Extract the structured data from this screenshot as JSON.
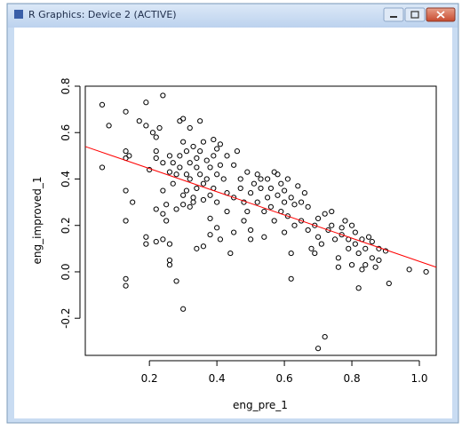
{
  "window": {
    "title": "R Graphics: Device 2 (ACTIVE)"
  },
  "chart_data": {
    "type": "scatter",
    "xlabel": "eng_pre_1",
    "ylabel": "eng_improved_1",
    "color": "#000000",
    "xlim": [
      0.01,
      1.05
    ],
    "ylim": [
      -0.36,
      0.8
    ],
    "xticks": [
      0.2,
      0.4,
      0.6,
      0.8,
      {
        "value": 1.0,
        "label": "1.0"
      }
    ],
    "yticks": [
      {
        "value": -0.2,
        "label": "-0.2"
      },
      {
        "value": 0.0,
        "label": "0.0"
      },
      0.2,
      0.4,
      0.6,
      0.8
    ],
    "regression_line": {
      "x": [
        0.01,
        1.05
      ],
      "y": [
        0.54,
        0.02
      ],
      "color": "#ff0000"
    },
    "x": [
      0.06,
      0.06,
      0.08,
      0.13,
      0.13,
      0.13,
      0.14,
      0.13,
      0.13,
      0.13,
      0.13,
      0.15,
      0.17,
      0.19,
      0.19,
      0.19,
      0.19,
      0.2,
      0.21,
      0.22,
      0.22,
      0.22,
      0.22,
      0.22,
      0.23,
      0.24,
      0.24,
      0.24,
      0.24,
      0.24,
      0.25,
      0.25,
      0.26,
      0.26,
      0.26,
      0.26,
      0.26,
      0.27,
      0.27,
      0.28,
      0.28,
      0.28,
      0.29,
      0.29,
      0.29,
      0.3,
      0.3,
      0.3,
      0.3,
      0.3,
      0.31,
      0.31,
      0.31,
      0.32,
      0.32,
      0.32,
      0.32,
      0.33,
      0.33,
      0.33,
      0.34,
      0.34,
      0.34,
      0.34,
      0.35,
      0.35,
      0.35,
      0.36,
      0.36,
      0.36,
      0.36,
      0.37,
      0.37,
      0.38,
      0.38,
      0.38,
      0.38,
      0.39,
      0.39,
      0.39,
      0.4,
      0.4,
      0.4,
      0.4,
      0.41,
      0.41,
      0.41,
      0.42,
      0.43,
      0.43,
      0.43,
      0.44,
      0.45,
      0.45,
      0.45,
      0.46,
      0.47,
      0.47,
      0.48,
      0.48,
      0.49,
      0.49,
      0.5,
      0.5,
      0.5,
      0.51,
      0.52,
      0.52,
      0.53,
      0.53,
      0.54,
      0.54,
      0.55,
      0.55,
      0.56,
      0.56,
      0.57,
      0.57,
      0.58,
      0.58,
      0.59,
      0.59,
      0.6,
      0.6,
      0.6,
      0.61,
      0.61,
      0.62,
      0.62,
      0.62,
      0.63,
      0.63,
      0.64,
      0.65,
      0.65,
      0.66,
      0.67,
      0.67,
      0.68,
      0.69,
      0.69,
      0.7,
      0.7,
      0.7,
      0.71,
      0.72,
      0.72,
      0.73,
      0.74,
      0.74,
      0.75,
      0.76,
      0.76,
      0.77,
      0.77,
      0.78,
      0.79,
      0.79,
      0.8,
      0.8,
      0.81,
      0.81,
      0.82,
      0.82,
      0.83,
      0.83,
      0.84,
      0.84,
      0.85,
      0.86,
      0.86,
      0.87,
      0.88,
      0.88,
      0.9,
      0.91,
      0.97,
      1.02
    ],
    "y": [
      0.72,
      0.45,
      0.63,
      0.69,
      0.52,
      0.49,
      0.5,
      0.35,
      0.22,
      -0.03,
      -0.06,
      0.3,
      0.65,
      0.63,
      0.73,
      0.15,
      0.12,
      0.44,
      0.6,
      0.58,
      0.52,
      0.49,
      0.27,
      0.13,
      0.62,
      0.76,
      0.47,
      0.35,
      0.25,
      0.14,
      0.29,
      0.22,
      0.5,
      0.43,
      0.12,
      0.05,
      0.03,
      0.47,
      0.38,
      0.42,
      0.27,
      -0.04,
      0.65,
      0.5,
      0.45,
      0.66,
      0.56,
      0.33,
      0.29,
      -0.16,
      0.52,
      0.42,
      0.35,
      0.62,
      0.47,
      0.4,
      0.28,
      0.54,
      0.32,
      0.3,
      0.49,
      0.45,
      0.36,
      0.1,
      0.65,
      0.52,
      0.42,
      0.56,
      0.38,
      0.31,
      0.11,
      0.48,
      0.4,
      0.45,
      0.33,
      0.23,
      0.16,
      0.57,
      0.5,
      0.36,
      0.53,
      0.42,
      0.3,
      0.19,
      0.55,
      0.46,
      0.14,
      0.4,
      0.5,
      0.34,
      0.26,
      0.08,
      0.46,
      0.32,
      0.17,
      0.52,
      0.4,
      0.36,
      0.3,
      0.22,
      0.43,
      0.26,
      0.34,
      0.18,
      0.14,
      0.38,
      0.42,
      0.3,
      0.36,
      0.4,
      0.26,
      0.15,
      0.32,
      0.4,
      0.36,
      0.28,
      0.43,
      0.22,
      0.42,
      0.33,
      0.38,
      0.26,
      0.35,
      0.3,
      0.17,
      0.4,
      0.24,
      0.32,
      0.08,
      -0.03,
      0.29,
      0.2,
      0.37,
      0.3,
      0.22,
      0.34,
      0.28,
      0.18,
      0.1,
      0.2,
      0.08,
      0.23,
      0.15,
      -0.33,
      0.12,
      0.25,
      -0.28,
      0.18,
      0.26,
      0.2,
      0.14,
      0.06,
      0.02,
      0.19,
      0.16,
      0.22,
      0.14,
      0.1,
      0.2,
      0.03,
      0.17,
      0.12,
      0.08,
      -0.07,
      0.14,
      0.01,
      0.1,
      0.03,
      0.15,
      0.06,
      0.13,
      0.02,
      0.1,
      0.05,
      0.09,
      -0.05,
      0.01,
      0.0
    ]
  }
}
